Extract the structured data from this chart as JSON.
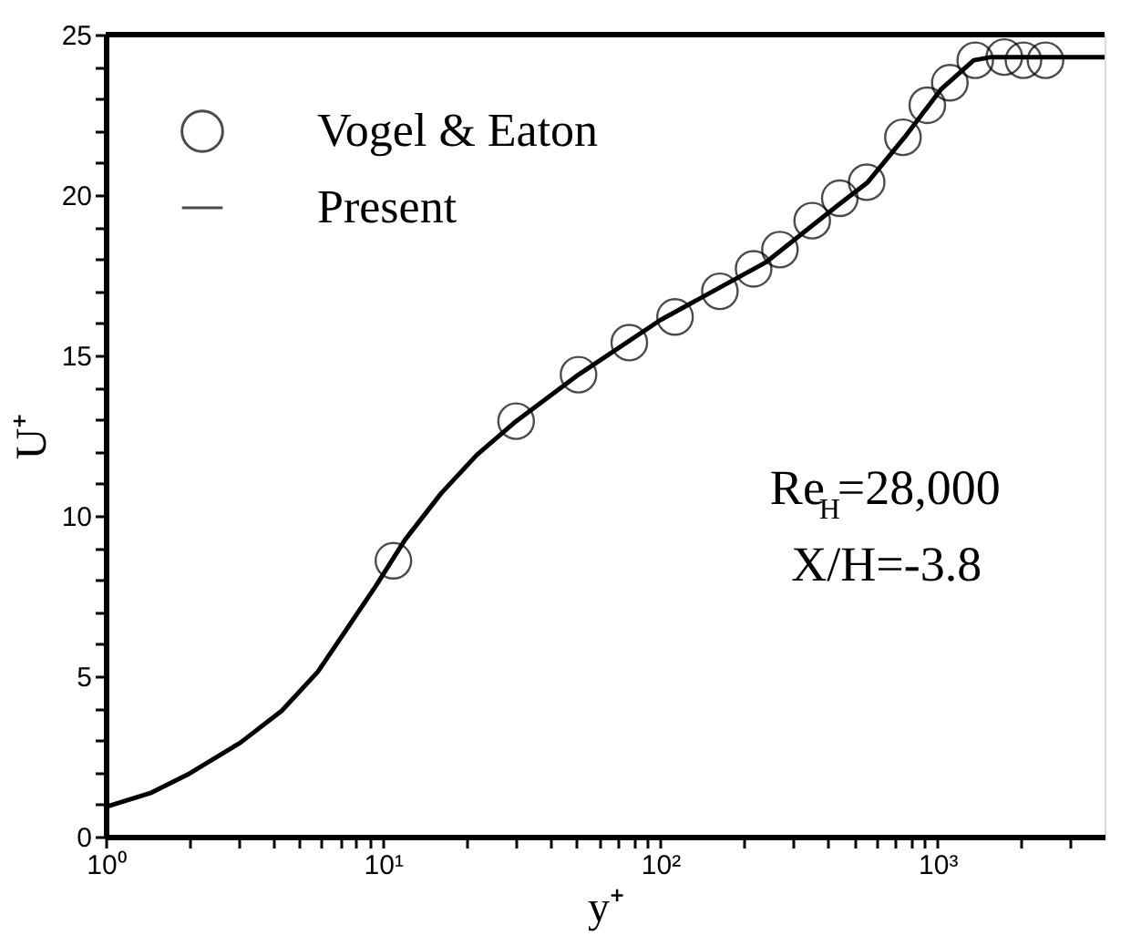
{
  "chart_data": {
    "type": "line",
    "xlabel": "y⁺",
    "ylabel": "U⁺",
    "log": "x",
    "xlim": [
      1,
      4000
    ],
    "ylim": [
      0,
      25
    ],
    "xticks": [
      {
        "value": 1,
        "label": "10⁰"
      },
      {
        "value": 2,
        "label": null
      },
      {
        "value": 3,
        "label": null
      },
      {
        "value": 4,
        "label": null
      },
      {
        "value": 5,
        "label": null
      },
      {
        "value": 6,
        "label": null
      },
      {
        "value": 7,
        "label": null
      },
      {
        "value": 8,
        "label": null
      },
      {
        "value": 9,
        "label": null
      },
      {
        "value": 10,
        "label": "10¹"
      },
      {
        "value": 20,
        "label": null
      },
      {
        "value": 30,
        "label": null
      },
      {
        "value": 40,
        "label": null
      },
      {
        "value": 50,
        "label": null
      },
      {
        "value": 60,
        "label": null
      },
      {
        "value": 70,
        "label": null
      },
      {
        "value": 80,
        "label": null
      },
      {
        "value": 90,
        "label": null
      },
      {
        "value": 100,
        "label": "10²"
      },
      {
        "value": 200,
        "label": null
      },
      {
        "value": 300,
        "label": null
      },
      {
        "value": 400,
        "label": null
      },
      {
        "value": 500,
        "label": null
      },
      {
        "value": 600,
        "label": null
      },
      {
        "value": 700,
        "label": null
      },
      {
        "value": 800,
        "label": null
      },
      {
        "value": 900,
        "label": null
      },
      {
        "value": 1000,
        "label": "10³"
      },
      {
        "value": 2000,
        "label": null
      },
      {
        "value": 3000,
        "label": null
      }
    ],
    "yticks": [
      0,
      {
        "value": 1,
        "label": null
      },
      {
        "value": 2,
        "label": null
      },
      {
        "value": 3,
        "label": null
      },
      {
        "value": 4,
        "label": null
      },
      5,
      {
        "value": 6,
        "label": null
      },
      {
        "value": 7,
        "label": null
      },
      {
        "value": 8,
        "label": null
      },
      {
        "value": 9,
        "label": null
      },
      10,
      {
        "value": 11,
        "label": null
      },
      {
        "value": 12,
        "label": null
      },
      {
        "value": 13,
        "label": null
      },
      {
        "value": 14,
        "label": null
      },
      15,
      {
        "value": 16,
        "label": null
      },
      {
        "value": 17,
        "label": null
      },
      {
        "value": 18,
        "label": null
      },
      {
        "value": 19,
        "label": null
      },
      20,
      {
        "value": 21,
        "label": null
      },
      {
        "value": 22,
        "label": null
      },
      {
        "value": 23,
        "label": null
      },
      {
        "value": 24,
        "label": null
      },
      25
    ],
    "grid": false,
    "legend": "top left",
    "series": [
      {
        "name": "Vogel & Eaton",
        "type": "scatter",
        "marker": "circle",
        "color": "#000000",
        "x": [
          10.9,
          30.2,
          50.7,
          77.3,
          113,
          164,
          217,
          270,
          353,
          444,
          555,
          750,
          918,
          1107,
          1367,
          1740,
          2040,
          2450
        ],
        "values": [
          8.6,
          12.95,
          14.4,
          15.4,
          16.2,
          17.0,
          17.7,
          18.3,
          19.2,
          19.9,
          20.4,
          21.8,
          22.8,
          23.5,
          24.2,
          24.3,
          24.2,
          24.2
        ]
      },
      {
        "name": "Present",
        "line_style": "solid",
        "color": "#000000",
        "x": [
          1,
          1.46,
          1.97,
          3.06,
          4.31,
          5.82,
          7.4,
          9.4,
          12.0,
          16.2,
          21.8,
          30.2,
          50.7,
          100,
          240,
          440,
          560,
          760,
          1030,
          1350,
          1560,
          4000
        ],
        "values": [
          0.93,
          1.37,
          1.93,
          2.93,
          3.92,
          5.14,
          6.47,
          7.8,
          9.25,
          10.7,
          11.9,
          12.95,
          14.4,
          16.1,
          17.9,
          19.7,
          20.4,
          21.8,
          23.3,
          24.2,
          24.3,
          24.3
        ]
      }
    ],
    "annotations": [
      "Re$_{H}$=28,000",
      "X/H=-3.8"
    ]
  }
}
